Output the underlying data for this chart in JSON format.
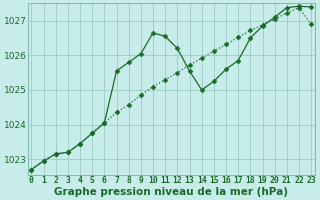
{
  "title": "Graphe pression niveau de la mer (hPa)",
  "background_color": "#c8ece9",
  "grid_color": "#a0cfc8",
  "line_color": "#1a6b2a",
  "series1_y": [
    1022.7,
    1022.95,
    1023.15,
    1023.2,
    1023.45,
    1023.75,
    1024.05,
    1025.55,
    1025.8,
    1026.05,
    1026.65,
    1026.55,
    1026.2,
    1025.55,
    1025.0,
    1025.25,
    1025.6,
    1025.85,
    1026.5,
    1026.85,
    1027.1,
    1027.38,
    1027.42,
    1027.4
  ],
  "series2_y": [
    1022.7,
    1022.95,
    1023.15,
    1023.2,
    1023.45,
    1023.75,
    1024.05,
    1024.35,
    1024.58,
    1024.85,
    1025.1,
    1025.3,
    1025.5,
    1025.72,
    1025.92,
    1026.12,
    1026.32,
    1026.52,
    1026.72,
    1026.88,
    1027.05,
    1027.22,
    1027.38,
    1026.9
  ],
  "x": [
    0,
    1,
    2,
    3,
    4,
    5,
    6,
    7,
    8,
    9,
    10,
    11,
    12,
    13,
    14,
    15,
    16,
    17,
    18,
    19,
    20,
    21,
    22,
    23
  ],
  "ylim": [
    1022.55,
    1027.5
  ],
  "yticks": [
    1023,
    1024,
    1025,
    1026,
    1027
  ],
  "xlim": [
    -0.3,
    23.3
  ],
  "xticks": [
    0,
    1,
    2,
    3,
    4,
    5,
    6,
    7,
    8,
    9,
    10,
    11,
    12,
    13,
    14,
    15,
    16,
    17,
    18,
    19,
    20,
    21,
    22,
    23
  ],
  "title_fontsize": 7.5,
  "tick_fontsize": 5.8,
  "ytick_fontsize": 6.5
}
